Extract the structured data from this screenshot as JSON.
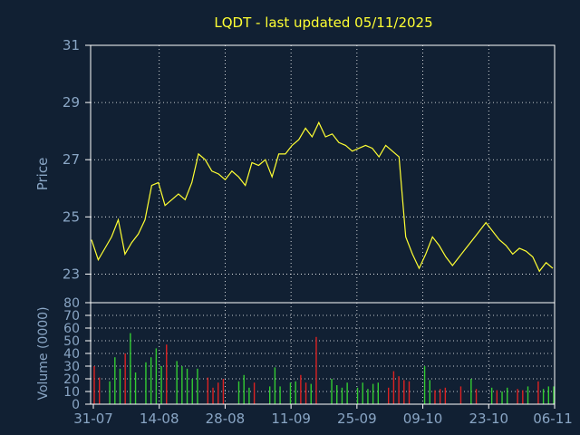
{
  "chart_data": [
    {
      "type": "line",
      "title": "LQDT - last updated 05/11/2025",
      "ylabel": "Price",
      "ylim": [
        22,
        31
      ],
      "yticks": [
        "31",
        "29",
        "27",
        "25",
        "23"
      ],
      "x": [
        "31-07",
        "01-08",
        "04-08",
        "05-08",
        "06-08",
        "07-08",
        "08-08",
        "11-08",
        "12-08",
        "13-08",
        "14-08",
        "15-08",
        "18-08",
        "19-08",
        "20-08",
        "21-08",
        "22-08",
        "25-08",
        "26-08",
        "27-08",
        "28-08",
        "29-08",
        "02-09",
        "03-09",
        "04-09",
        "05-09",
        "08-09",
        "09-09",
        "10-09",
        "11-09",
        "12-09",
        "15-09",
        "16-09",
        "17-09",
        "18-09",
        "19-09",
        "22-09",
        "23-09",
        "24-09",
        "25-09",
        "26-09",
        "29-09",
        "30-09",
        "01-10",
        "02-10",
        "03-10",
        "06-10",
        "07-10",
        "08-10",
        "09-10",
        "10-10",
        "13-10",
        "14-10",
        "15-10",
        "16-10",
        "17-10",
        "20-10",
        "21-10",
        "22-10",
        "23-10",
        "24-10",
        "27-10",
        "28-10",
        "29-10",
        "30-10",
        "31-10",
        "03-11",
        "04-11",
        "05-11",
        "06-11"
      ],
      "series": [
        {
          "color": "#ffff33",
          "values": [
            24.2,
            23.5,
            23.9,
            24.3,
            24.9,
            23.7,
            24.1,
            24.4,
            24.9,
            26.1,
            26.2,
            25.4,
            25.6,
            25.8,
            25.6,
            26.2,
            27.2,
            27.0,
            26.6,
            26.5,
            26.3,
            26.6,
            26.4,
            26.1,
            26.9,
            26.8,
            27.0,
            26.4,
            27.2,
            27.2,
            27.5,
            27.7,
            28.1,
            27.8,
            28.3,
            27.8,
            27.9,
            27.6,
            27.5,
            27.3,
            27.4,
            27.5,
            27.4,
            27.1,
            27.5,
            27.3,
            27.1,
            24.3,
            23.7,
            23.2,
            23.7,
            24.3,
            24.0,
            23.6,
            23.3,
            23.6,
            23.9,
            24.2,
            24.5,
            24.8,
            24.5,
            24.2,
            24.0,
            23.7,
            23.9,
            23.8,
            23.6,
            23.1,
            23.4,
            23.2
          ]
        }
      ],
      "grid": true
    },
    {
      "type": "bar",
      "ylabel": "Volume (0000)",
      "ylim": [
        0,
        80
      ],
      "yticks": [
        "80",
        "70",
        "60",
        "50",
        "40",
        "30",
        "20",
        "10",
        "0"
      ],
      "xticks": [
        "31-07",
        "14-08",
        "28-08",
        "11-09",
        "25-09",
        "09-10",
        "23-10",
        "06-11"
      ],
      "up_color": "#33cc33",
      "down_color": "#dd2222",
      "values": [
        30,
        21,
        0,
        18,
        37,
        28,
        40,
        56,
        25,
        0,
        33,
        37,
        44,
        30,
        47,
        0,
        34,
        30,
        28,
        20,
        28,
        0,
        21,
        13,
        17,
        20,
        0,
        0,
        18,
        23,
        13,
        17,
        0,
        0,
        14,
        29,
        14,
        0,
        17,
        18,
        23,
        17,
        16,
        53,
        0,
        0,
        20,
        15,
        13,
        17,
        0,
        13,
        17,
        12,
        16,
        17,
        0,
        13,
        26,
        22,
        19,
        18,
        0,
        0,
        30,
        19,
        11,
        12,
        13,
        0,
        0,
        14,
        0,
        20,
        12,
        0,
        0,
        13,
        11,
        10,
        13,
        0,
        12,
        11,
        14,
        0,
        18,
        12,
        14,
        14
      ],
      "directions": [
        "down",
        "down",
        "up",
        "up",
        "up",
        "up",
        "down",
        "up",
        "up",
        "up",
        "up",
        "up",
        "up",
        "up",
        "down",
        "up",
        "up",
        "up",
        "up",
        "up",
        "up",
        "up",
        "down",
        "down",
        "down",
        "down",
        "up",
        "up",
        "up",
        "up",
        "up",
        "down",
        "up",
        "up",
        "up",
        "up",
        "up",
        "up",
        "up",
        "up",
        "down",
        "down",
        "up",
        "down",
        "up",
        "up",
        "up",
        "up",
        "up",
        "up",
        "up",
        "up",
        "up",
        "up",
        "up",
        "up",
        "up",
        "down",
        "down",
        "down",
        "down",
        "down",
        "up",
        "up",
        "up",
        "up",
        "down",
        "down",
        "down",
        "down",
        "up",
        "down",
        "up",
        "up",
        "down",
        "up",
        "up",
        "up",
        "down",
        "up",
        "up",
        "up",
        "down",
        "down",
        "up",
        "up",
        "down",
        "up",
        "up",
        "up"
      ],
      "grid": true
    }
  ]
}
